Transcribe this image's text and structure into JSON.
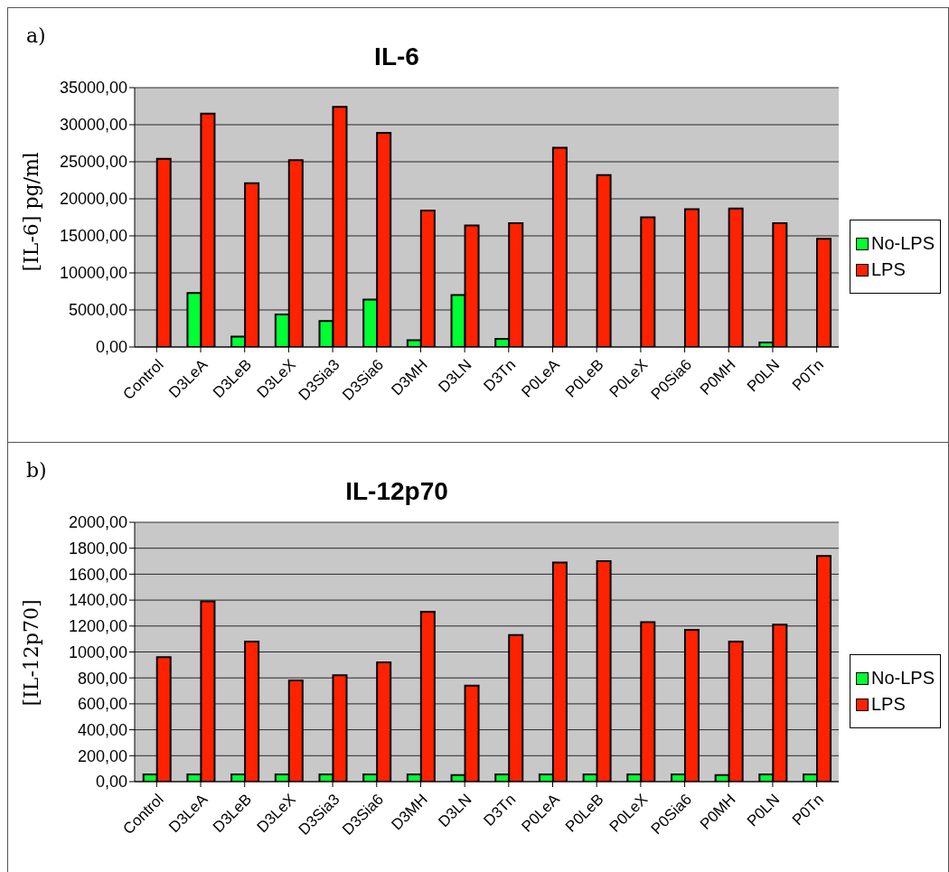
{
  "chart_data": [
    {
      "type": "bar",
      "title": "IL-6",
      "ylabel": "[IL-6] pg/ml",
      "annotations": [
        "a)"
      ],
      "categories": [
        "Control",
        "D3LeA",
        "D3LeB",
        "D3LeX",
        "D3Sia3",
        "D3Sia6",
        "D3MH",
        "D3LN",
        "D3Tn",
        "P0LeA",
        "P0LeB",
        "P0LeX",
        "P0Sia6",
        "P0MH",
        "P0LN",
        "P0Tn"
      ],
      "series": [
        {
          "name": "No-LPS",
          "color": "#00ff33",
          "values": [
            0,
            7300,
            1400,
            4400,
            3500,
            6400,
            900,
            7000,
            1100,
            0,
            0,
            0,
            0,
            0,
            600,
            0
          ]
        },
        {
          "name": "LPS",
          "color": "#ff2200",
          "values": [
            25400,
            31500,
            22100,
            25200,
            32400,
            28900,
            18400,
            16400,
            16700,
            26900,
            23200,
            17500,
            18600,
            18700,
            16700,
            14600
          ]
        }
      ],
      "ylim": [
        0,
        35000
      ],
      "yticks": [
        {
          "value": 0,
          "label": "0,00"
        },
        {
          "value": 5000,
          "label": "5000,00"
        },
        {
          "value": 10000,
          "label": "10000,00"
        },
        {
          "value": 15000,
          "label": "15000,00"
        },
        {
          "value": 20000,
          "label": "20000,00"
        },
        {
          "value": 25000,
          "label": "25000,00"
        },
        {
          "value": 30000,
          "label": "30000,00"
        },
        {
          "value": 35000,
          "label": "35000,00"
        }
      ],
      "grid": "y",
      "legend": "right"
    },
    {
      "type": "bar",
      "title": "IL-12p70",
      "ylabel": "[IL-12p70]",
      "annotations": [
        "b)"
      ],
      "categories": [
        "Control",
        "D3LeA",
        "D3LeB",
        "D3LeX",
        "D3Sia3",
        "D3Sia6",
        "D3MH",
        "D3LN",
        "D3Tn",
        "P0LeA",
        "P0LeB",
        "P0LeX",
        "P0Sia6",
        "P0MH",
        "P0LN",
        "P0Tn"
      ],
      "series": [
        {
          "name": "No-LPS",
          "color": "#00ff33",
          "values": [
            55,
            55,
            55,
            55,
            55,
            55,
            55,
            50,
            55,
            55,
            55,
            55,
            55,
            50,
            55,
            55
          ]
        },
        {
          "name": "LPS",
          "color": "#ff2200",
          "values": [
            960,
            1390,
            1080,
            780,
            820,
            920,
            1310,
            740,
            1130,
            1690,
            1700,
            1230,
            1170,
            1080,
            1210,
            1740
          ]
        }
      ],
      "ylim": [
        0,
        2000
      ],
      "yticks": [
        {
          "value": 0,
          "label": "0,00"
        },
        {
          "value": 200,
          "label": "200,00"
        },
        {
          "value": 400,
          "label": "400,00"
        },
        {
          "value": 600,
          "label": "600,00"
        },
        {
          "value": 800,
          "label": "800,00"
        },
        {
          "value": 1000,
          "label": "1000,00"
        },
        {
          "value": 1200,
          "label": "1200,00"
        },
        {
          "value": 1400,
          "label": "1400,00"
        },
        {
          "value": 1600,
          "label": "1600,00"
        },
        {
          "value": 1800,
          "label": "1800,00"
        },
        {
          "value": 2000,
          "label": "2000,00"
        }
      ],
      "grid": "y",
      "legend": "right"
    }
  ]
}
